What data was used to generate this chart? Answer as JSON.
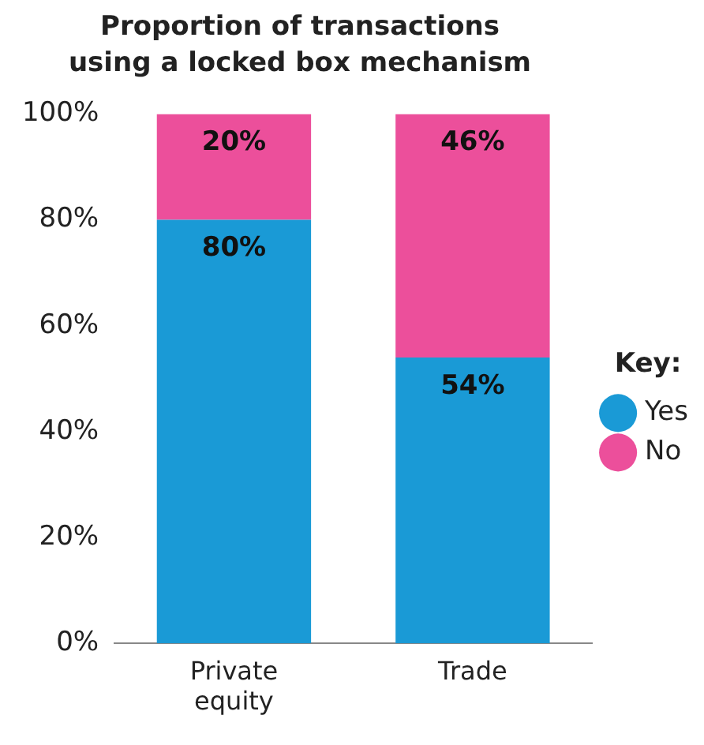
{
  "chart_data": {
    "type": "bar",
    "title": "Proportion of transactions using a locked box mechanism",
    "categories": [
      "Private equity",
      "Trade"
    ],
    "stacked": true,
    "series": [
      {
        "name": "Yes",
        "color": "#1a9ad6",
        "values": [
          80,
          54
        ],
        "value_labels": [
          "80%",
          "54%"
        ]
      },
      {
        "name": "No",
        "color": "#ec4f9b",
        "values": [
          20,
          46
        ],
        "value_labels": [
          "20%",
          "46%"
        ]
      }
    ],
    "ylim": [
      0,
      100
    ],
    "yticks": [
      {
        "value": 0,
        "label": "0%"
      },
      {
        "value": 20,
        "label": "20%"
      },
      {
        "value": 40,
        "label": "40%"
      },
      {
        "value": 60,
        "label": "60%"
      },
      {
        "value": 80,
        "label": "80%"
      },
      {
        "value": 100,
        "label": "100%"
      }
    ],
    "grid": false,
    "legend": "right",
    "legend_title": "Key:"
  }
}
